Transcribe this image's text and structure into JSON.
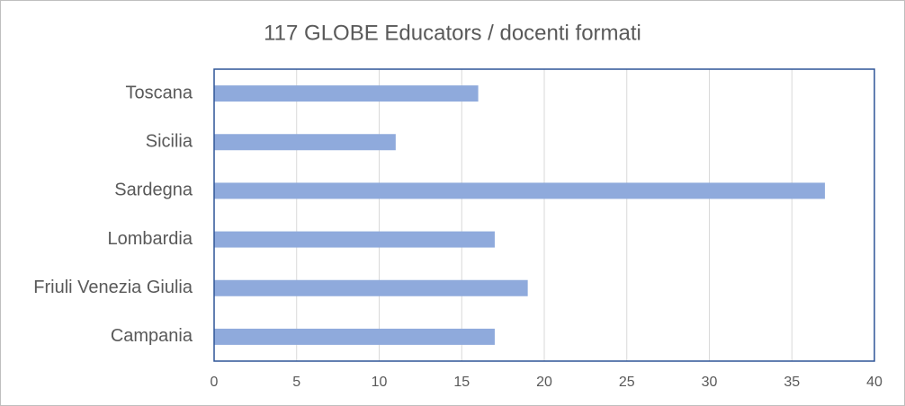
{
  "chart_data": {
    "type": "bar",
    "orientation": "horizontal",
    "title": "117 GLOBE Educators / docenti formati",
    "categories": [
      "Toscana",
      "Sicilia",
      "Sardegna",
      "Lombardia",
      "Friuli Venezia Giulia",
      "Campania"
    ],
    "values": [
      16,
      11,
      37,
      17,
      19,
      17
    ],
    "color": "#8faadc",
    "xlim": [
      0,
      40
    ],
    "xticks": [
      0,
      5,
      10,
      15,
      20,
      25,
      30,
      35,
      40
    ],
    "grid": true
  }
}
